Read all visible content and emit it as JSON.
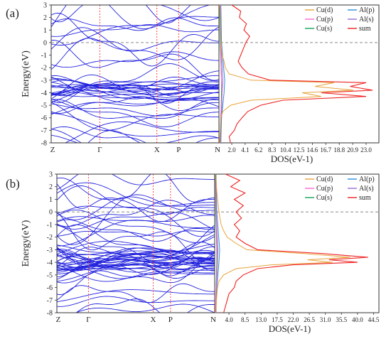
{
  "colors": {
    "bands": "#2222dd",
    "high_symmetry": "#ff3333",
    "fermi": "#777777",
    "cu_d": "#e8a33a",
    "cu_p": "#ff66cc",
    "cu_s": "#13a35a",
    "al_p": "#2a8fd8",
    "al_s": "#9b6bd6",
    "sum": "#ee2222"
  },
  "chart_data": [
    {
      "type": "line",
      "panel_label": "(a)",
      "band_structure": {
        "ylabel": "Energy(eV)",
        "ylim": [
          -8,
          3
        ],
        "yticks": [
          "3",
          "2",
          "1",
          "0",
          "-1",
          "-2",
          "-3",
          "-4",
          "-5",
          "-6",
          "-7",
          "-8"
        ],
        "kpoints": [
          {
            "label": "Z",
            "pos": 0.0
          },
          {
            "label": "Γ",
            "pos": 0.29
          },
          {
            "label": "X",
            "pos": 0.63
          },
          {
            "label": "P",
            "pos": 0.76
          },
          {
            "label": "N",
            "pos": 1.0
          }
        ],
        "fermi_level": 0,
        "note": "many dispersive band lines between Energy -8 and 3 eV"
      },
      "dos": {
        "xlabel": "DOS(eV-1)",
        "xlim": [
          0,
          25
        ],
        "xticks": [
          "2.0",
          "4.1",
          "6.2",
          "8.3",
          "10.4",
          "12.5",
          "14.6",
          "16.7",
          "18.8",
          "20.9",
          "23.0"
        ],
        "legend": [
          "Cu(d)",
          "Al(p)",
          "Cu(p)",
          "Al(s)",
          "Cu(s)",
          "sum"
        ],
        "legend_position": "top-right",
        "series": [
          {
            "name": "sum",
            "energy": [
              3.0,
              2.5,
              2.0,
              1.5,
              1.0,
              0.5,
              0.0,
              -0.5,
              -1.0,
              -1.5,
              -2.0,
              -2.5,
              -3.0,
              -3.2,
              -3.5,
              -3.8,
              -4.0,
              -4.3,
              -4.6,
              -5.0,
              -5.5,
              -6.0,
              -6.5,
              -7.0,
              -7.5,
              -8.0
            ],
            "dos": [
              2.0,
              3.4,
              3.2,
              4.3,
              3.9,
              4.8,
              4.2,
              3.8,
              3.4,
              3.0,
              3.6,
              4.6,
              8.0,
              23.0,
              20.5,
              24.0,
              16.0,
              23.0,
              10.0,
              6.5,
              4.5,
              3.6,
              2.8,
              2.4,
              1.6,
              1.8
            ]
          },
          {
            "name": "Cu(d)",
            "energy": [
              3.0,
              2.0,
              1.0,
              0.0,
              -1.0,
              -1.5,
              -2.0,
              -2.5,
              -3.0,
              -3.2,
              -3.5,
              -3.8,
              -4.0,
              -4.3,
              -4.6,
              -5.0,
              -5.5,
              -6.0,
              -7.0,
              -8.0
            ],
            "dos": [
              0.1,
              0.2,
              0.2,
              0.3,
              0.5,
              0.8,
              1.0,
              1.6,
              5.0,
              18.0,
              15.0,
              21.0,
              13.0,
              16.0,
              5.0,
              1.8,
              0.6,
              0.3,
              0.2,
              0.1
            ]
          },
          {
            "name": "Cu(p)",
            "energy": [
              3.0,
              0.0,
              -3.0,
              -4.0,
              -6.0,
              -8.0
            ],
            "dos": [
              0.2,
              0.25,
              0.4,
              0.5,
              0.25,
              0.15
            ]
          },
          {
            "name": "Cu(s)",
            "energy": [
              3.0,
              0.0,
              -3.0,
              -4.0,
              -6.0,
              -8.0
            ],
            "dos": [
              0.1,
              0.2,
              0.4,
              0.4,
              0.3,
              0.2
            ]
          },
          {
            "name": "Al(p)",
            "energy": [
              3.0,
              0.0,
              -3.0,
              -4.0,
              -6.0,
              -8.0
            ],
            "dos": [
              0.3,
              0.4,
              0.9,
              0.8,
              0.4,
              0.2
            ]
          },
          {
            "name": "Al(s)",
            "energy": [
              3.0,
              0.0,
              -3.0,
              -4.0,
              -6.0,
              -8.0
            ],
            "dos": [
              0.2,
              0.3,
              0.6,
              0.5,
              0.4,
              0.3
            ]
          }
        ]
      }
    },
    {
      "type": "line",
      "panel_label": "(b)",
      "band_structure": {
        "ylabel": "Energy(eV)",
        "ylim": [
          -8,
          3
        ],
        "yticks": [
          "3",
          "2",
          "1",
          "0",
          "-1",
          "-2",
          "-3",
          "-4",
          "-5",
          "-6",
          "-7",
          "-8"
        ],
        "kpoints": [
          {
            "label": "Z",
            "pos": 0.0
          },
          {
            "label": "Γ",
            "pos": 0.2
          },
          {
            "label": "X",
            "pos": 0.61
          },
          {
            "label": "P",
            "pos": 0.72
          },
          {
            "label": "N",
            "pos": 1.0
          }
        ],
        "fermi_level": 0,
        "note": "dense band lines between Energy -8 and 3 eV"
      },
      "dos": {
        "xlabel": "DOS(eV-1)",
        "xlim": [
          0,
          46
        ],
        "xticks": [
          "4.0",
          "8.5",
          "13.0",
          "17.5",
          "22.0",
          "26.5",
          "31.0",
          "35.5",
          "40.0",
          "44.5"
        ],
        "legend": [
          "Cu(d)",
          "Al(p)",
          "Cu(p)",
          "Al(s)",
          "Cu(s)",
          "sum"
        ],
        "legend_position": "top-right",
        "series": [
          {
            "name": "sum",
            "energy": [
              3.0,
              2.5,
              2.0,
              1.5,
              1.0,
              0.5,
              0.0,
              -0.5,
              -1.0,
              -1.5,
              -2.0,
              -2.5,
              -3.0,
              -3.3,
              -3.6,
              -3.8,
              -4.0,
              -4.2,
              -4.5,
              -5.0,
              -5.5,
              -6.0,
              -6.5,
              -7.0,
              -7.5,
              -8.0
            ],
            "dos": [
              3.0,
              7.0,
              4.5,
              8.5,
              5.5,
              8.0,
              6.0,
              7.5,
              5.5,
              7.0,
              6.0,
              8.5,
              12.0,
              30.0,
              43.0,
              32.0,
              40.0,
              22.0,
              12.0,
              8.0,
              6.0,
              5.5,
              4.0,
              3.5,
              3.0,
              2.5
            ]
          },
          {
            "name": "Cu(d)",
            "energy": [
              3.0,
              2.0,
              1.0,
              0.0,
              -1.0,
              -1.5,
              -2.0,
              -2.5,
              -3.0,
              -3.3,
              -3.6,
              -3.8,
              -4.0,
              -4.2,
              -4.5,
              -5.0,
              -5.5,
              -6.0,
              -7.0,
              -8.0
            ],
            "dos": [
              0.3,
              0.5,
              0.8,
              1.2,
              1.8,
              2.5,
              3.5,
              6.0,
              9.0,
              25.0,
              38.0,
              26.0,
              33.0,
              16.0,
              6.0,
              2.5,
              1.2,
              0.8,
              0.5,
              0.3
            ]
          },
          {
            "name": "Cu(p)",
            "energy": [
              3.0,
              0.0,
              -3.0,
              -4.0,
              -6.0,
              -8.0
            ],
            "dos": [
              0.3,
              0.4,
              0.7,
              0.8,
              0.4,
              0.2
            ]
          },
          {
            "name": "Cu(s)",
            "energy": [
              3.0,
              0.0,
              -3.0,
              -4.0,
              -6.0,
              -8.0
            ],
            "dos": [
              0.2,
              0.3,
              0.6,
              0.6,
              0.4,
              0.3
            ]
          },
          {
            "name": "Al(p)",
            "energy": [
              3.0,
              0.0,
              -3.0,
              -4.0,
              -6.0,
              -8.0
            ],
            "dos": [
              0.4,
              0.6,
              1.4,
              1.2,
              0.6,
              0.3
            ]
          },
          {
            "name": "Al(s)",
            "energy": [
              3.0,
              0.0,
              -3.0,
              -4.0,
              -6.0,
              -8.0
            ],
            "dos": [
              0.3,
              0.4,
              0.9,
              0.8,
              0.5,
              0.4
            ]
          }
        ]
      }
    }
  ]
}
